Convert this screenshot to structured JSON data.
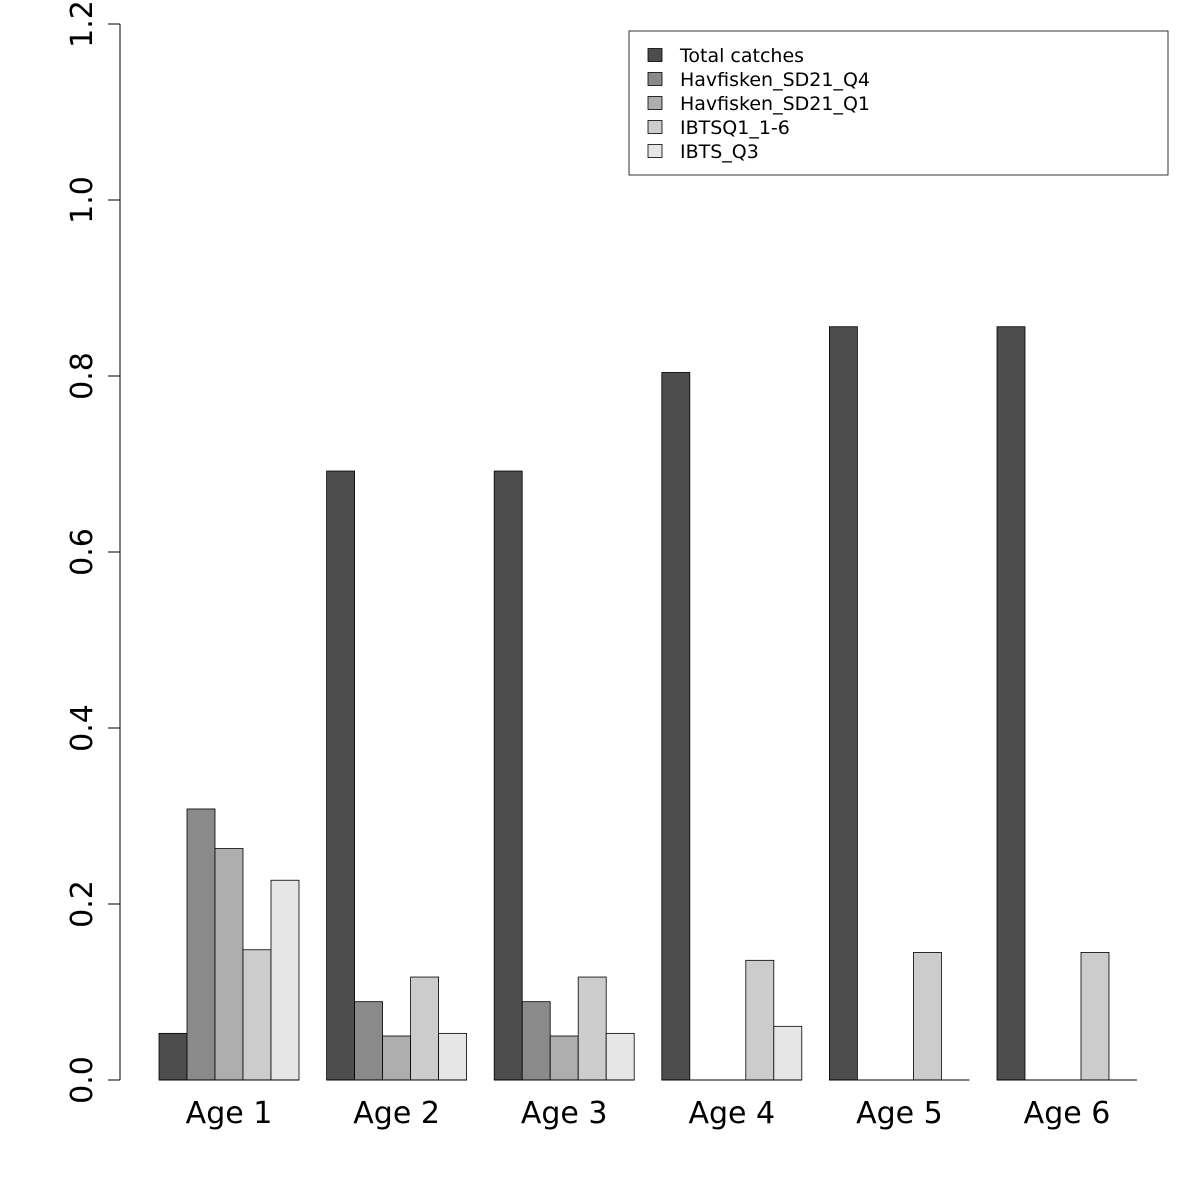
{
  "chart_data": {
    "type": "bar",
    "title": "",
    "xlabel": "",
    "ylabel": "",
    "ylim": [
      0,
      1.2
    ],
    "yticks": [
      "0.0",
      "0.2",
      "0.4",
      "0.6",
      "0.8",
      "1.0",
      "1.2"
    ],
    "categories": [
      "Age 1",
      "Age 2",
      "Age 3",
      "Age 4",
      "Age 5",
      "Age 6"
    ],
    "legend_position": "top-right",
    "grid": false,
    "series": [
      {
        "name": "Total catches",
        "color": "#4d4d4d",
        "values": [
          0.053,
          0.692,
          0.692,
          0.804,
          0.856,
          0.856
        ]
      },
      {
        "name": "Havfisken_SD21_Q4",
        "color": "#8a8a8a",
        "values": [
          0.308,
          0.089,
          0.089,
          0.0,
          0.0,
          0.0
        ]
      },
      {
        "name": "Havfisken_SD21_Q1",
        "color": "#aeaeae",
        "values": [
          0.263,
          0.05,
          0.05,
          0.0,
          0.0,
          0.0
        ]
      },
      {
        "name": "IBTSQ1_1-6",
        "color": "#cccccc",
        "values": [
          0.148,
          0.117,
          0.117,
          0.136,
          0.145,
          0.145
        ]
      },
      {
        "name": "IBTS_Q3",
        "color": "#e6e6e6",
        "values": [
          0.227,
          0.053,
          0.053,
          0.061,
          0.0,
          0.0
        ]
      }
    ]
  }
}
